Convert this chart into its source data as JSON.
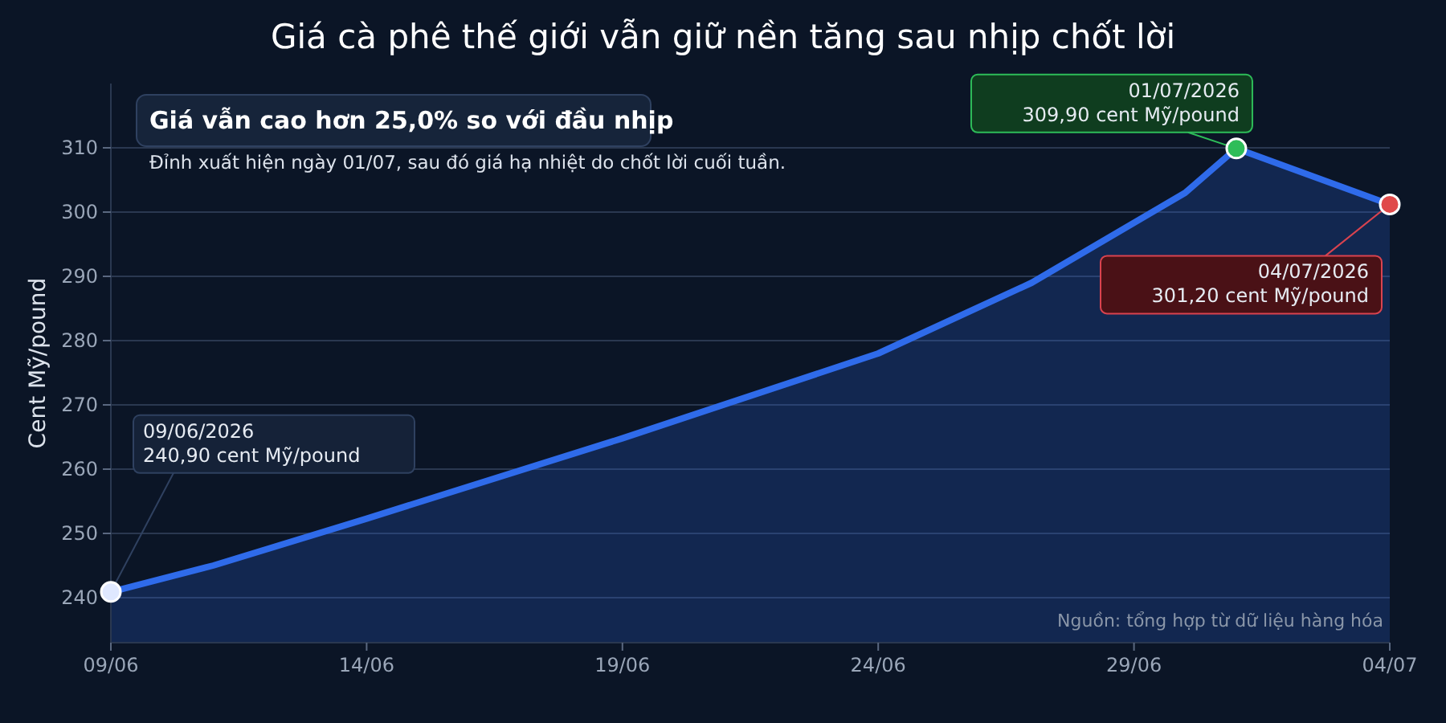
{
  "chart_data": {
    "type": "area",
    "title": "Giá cà phê thế giới vẫn giữ nền tăng sau nhịp chốt lời",
    "ylabel": "Cent Mỹ/pound",
    "x": [
      "2026-06-09",
      "2026-06-11",
      "2026-06-14",
      "2026-06-19",
      "2026-06-24",
      "2026-06-27",
      "2026-06-30",
      "2026-07-01",
      "2026-07-04"
    ],
    "series": [
      {
        "color": "#2f6bea",
        "values": [
          240.9,
          245,
          252.3,
          264.8,
          278,
          289,
          303,
          309.9,
          301.2
        ]
      }
    ],
    "xlim": [
      "2026-06-09",
      "2026-07-04"
    ],
    "xticks": [
      {
        "value": "2026-06-09",
        "label": "09/06"
      },
      {
        "value": "2026-06-14",
        "label": "14/06"
      },
      {
        "value": "2026-06-19",
        "label": "19/06"
      },
      {
        "value": "2026-06-24",
        "label": "24/06"
      },
      {
        "value": "2026-06-29",
        "label": "29/06"
      },
      {
        "value": "2026-07-04",
        "label": "04/07"
      }
    ],
    "ylim": [
      233,
      320
    ],
    "yticks": [
      240,
      250,
      260,
      270,
      280,
      290,
      300,
      310
    ],
    "grid": "y",
    "annotations": [
      "Giá vẫn cao hơn 25,0% so với đầu nhịp",
      "Đỉnh xuất hiện ngày 01/07, sau đó giá hạ nhiệt do chốt lời cuối tuần.",
      {
        "text": "09/06/2026\n240,90 cent Mỹ/pound",
        "x": "2026-06-09",
        "y": 240.9
      },
      {
        "text": "01/07/2026\n309,90 cent Mỹ/pound",
        "x": "2026-07-01",
        "y": 309.9
      },
      {
        "text": "04/07/2026\n301,20 cent Mỹ/pound",
        "x": "2026-07-04",
        "y": 301.2
      },
      "Nguồn: tổng hợp từ dữ liệu hàng hóa"
    ]
  }
}
